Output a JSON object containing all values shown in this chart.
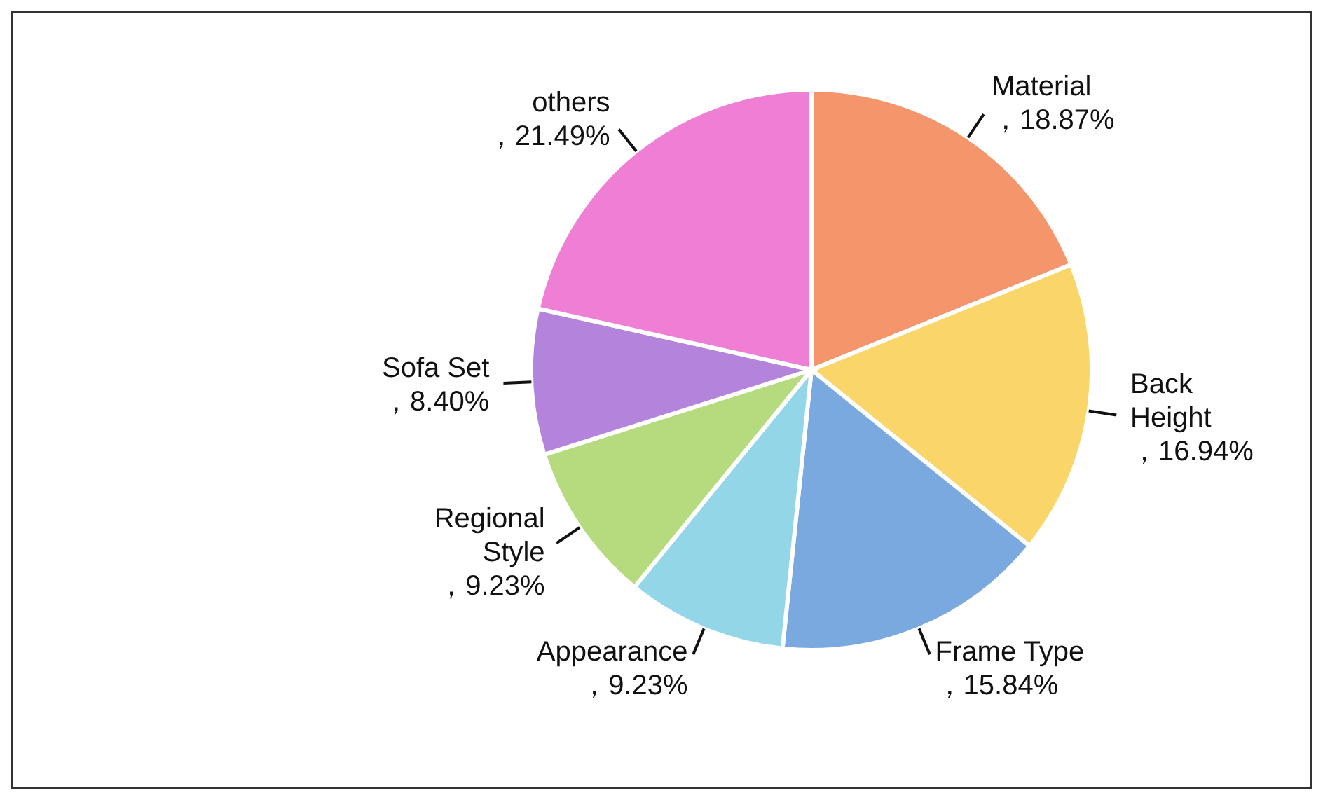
{
  "chart_data": {
    "type": "pie",
    "categories": [
      "Material",
      "Back Height",
      "Frame Type",
      "Appearance",
      "Regional Style",
      "Sofa Set",
      "others"
    ],
    "values": [
      18.87,
      16.94,
      15.84,
      9.23,
      9.23,
      8.4,
      21.49
    ],
    "colors": [
      "#f4956b",
      "#fad66a",
      "#7aa9e0",
      "#93d6e8",
      "#b5db7e",
      "#b483dc",
      "#ee7fd5"
    ],
    "value_labels": [
      "，18.87%",
      "，16.94%",
      "，15.84%",
      "，9.23%",
      "，9.23%",
      "，8.40%",
      "，21.49%"
    ],
    "legend": false
  }
}
